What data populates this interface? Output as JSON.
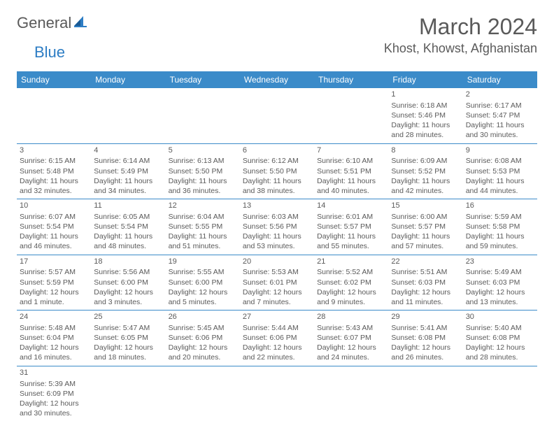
{
  "logo": {
    "text1": "General",
    "text2": "Blue"
  },
  "title": "March 2024",
  "location": "Khost, Khowst, Afghanistan",
  "accent_color": "#3b8bc9",
  "text_color": "#5a5a5a",
  "weekdays": [
    "Sunday",
    "Monday",
    "Tuesday",
    "Wednesday",
    "Thursday",
    "Friday",
    "Saturday"
  ],
  "weeks": [
    [
      null,
      null,
      null,
      null,
      null,
      {
        "day": "1",
        "sunrise": "Sunrise: 6:18 AM",
        "sunset": "Sunset: 5:46 PM",
        "daylight": "Daylight: 11 hours and 28 minutes."
      },
      {
        "day": "2",
        "sunrise": "Sunrise: 6:17 AM",
        "sunset": "Sunset: 5:47 PM",
        "daylight": "Daylight: 11 hours and 30 minutes."
      }
    ],
    [
      {
        "day": "3",
        "sunrise": "Sunrise: 6:15 AM",
        "sunset": "Sunset: 5:48 PM",
        "daylight": "Daylight: 11 hours and 32 minutes."
      },
      {
        "day": "4",
        "sunrise": "Sunrise: 6:14 AM",
        "sunset": "Sunset: 5:49 PM",
        "daylight": "Daylight: 11 hours and 34 minutes."
      },
      {
        "day": "5",
        "sunrise": "Sunrise: 6:13 AM",
        "sunset": "Sunset: 5:50 PM",
        "daylight": "Daylight: 11 hours and 36 minutes."
      },
      {
        "day": "6",
        "sunrise": "Sunrise: 6:12 AM",
        "sunset": "Sunset: 5:50 PM",
        "daylight": "Daylight: 11 hours and 38 minutes."
      },
      {
        "day": "7",
        "sunrise": "Sunrise: 6:10 AM",
        "sunset": "Sunset: 5:51 PM",
        "daylight": "Daylight: 11 hours and 40 minutes."
      },
      {
        "day": "8",
        "sunrise": "Sunrise: 6:09 AM",
        "sunset": "Sunset: 5:52 PM",
        "daylight": "Daylight: 11 hours and 42 minutes."
      },
      {
        "day": "9",
        "sunrise": "Sunrise: 6:08 AM",
        "sunset": "Sunset: 5:53 PM",
        "daylight": "Daylight: 11 hours and 44 minutes."
      }
    ],
    [
      {
        "day": "10",
        "sunrise": "Sunrise: 6:07 AM",
        "sunset": "Sunset: 5:54 PM",
        "daylight": "Daylight: 11 hours and 46 minutes."
      },
      {
        "day": "11",
        "sunrise": "Sunrise: 6:05 AM",
        "sunset": "Sunset: 5:54 PM",
        "daylight": "Daylight: 11 hours and 48 minutes."
      },
      {
        "day": "12",
        "sunrise": "Sunrise: 6:04 AM",
        "sunset": "Sunset: 5:55 PM",
        "daylight": "Daylight: 11 hours and 51 minutes."
      },
      {
        "day": "13",
        "sunrise": "Sunrise: 6:03 AM",
        "sunset": "Sunset: 5:56 PM",
        "daylight": "Daylight: 11 hours and 53 minutes."
      },
      {
        "day": "14",
        "sunrise": "Sunrise: 6:01 AM",
        "sunset": "Sunset: 5:57 PM",
        "daylight": "Daylight: 11 hours and 55 minutes."
      },
      {
        "day": "15",
        "sunrise": "Sunrise: 6:00 AM",
        "sunset": "Sunset: 5:57 PM",
        "daylight": "Daylight: 11 hours and 57 minutes."
      },
      {
        "day": "16",
        "sunrise": "Sunrise: 5:59 AM",
        "sunset": "Sunset: 5:58 PM",
        "daylight": "Daylight: 11 hours and 59 minutes."
      }
    ],
    [
      {
        "day": "17",
        "sunrise": "Sunrise: 5:57 AM",
        "sunset": "Sunset: 5:59 PM",
        "daylight": "Daylight: 12 hours and 1 minute."
      },
      {
        "day": "18",
        "sunrise": "Sunrise: 5:56 AM",
        "sunset": "Sunset: 6:00 PM",
        "daylight": "Daylight: 12 hours and 3 minutes."
      },
      {
        "day": "19",
        "sunrise": "Sunrise: 5:55 AM",
        "sunset": "Sunset: 6:00 PM",
        "daylight": "Daylight: 12 hours and 5 minutes."
      },
      {
        "day": "20",
        "sunrise": "Sunrise: 5:53 AM",
        "sunset": "Sunset: 6:01 PM",
        "daylight": "Daylight: 12 hours and 7 minutes."
      },
      {
        "day": "21",
        "sunrise": "Sunrise: 5:52 AM",
        "sunset": "Sunset: 6:02 PM",
        "daylight": "Daylight: 12 hours and 9 minutes."
      },
      {
        "day": "22",
        "sunrise": "Sunrise: 5:51 AM",
        "sunset": "Sunset: 6:03 PM",
        "daylight": "Daylight: 12 hours and 11 minutes."
      },
      {
        "day": "23",
        "sunrise": "Sunrise: 5:49 AM",
        "sunset": "Sunset: 6:03 PM",
        "daylight": "Daylight: 12 hours and 13 minutes."
      }
    ],
    [
      {
        "day": "24",
        "sunrise": "Sunrise: 5:48 AM",
        "sunset": "Sunset: 6:04 PM",
        "daylight": "Daylight: 12 hours and 16 minutes."
      },
      {
        "day": "25",
        "sunrise": "Sunrise: 5:47 AM",
        "sunset": "Sunset: 6:05 PM",
        "daylight": "Daylight: 12 hours and 18 minutes."
      },
      {
        "day": "26",
        "sunrise": "Sunrise: 5:45 AM",
        "sunset": "Sunset: 6:06 PM",
        "daylight": "Daylight: 12 hours and 20 minutes."
      },
      {
        "day": "27",
        "sunrise": "Sunrise: 5:44 AM",
        "sunset": "Sunset: 6:06 PM",
        "daylight": "Daylight: 12 hours and 22 minutes."
      },
      {
        "day": "28",
        "sunrise": "Sunrise: 5:43 AM",
        "sunset": "Sunset: 6:07 PM",
        "daylight": "Daylight: 12 hours and 24 minutes."
      },
      {
        "day": "29",
        "sunrise": "Sunrise: 5:41 AM",
        "sunset": "Sunset: 6:08 PM",
        "daylight": "Daylight: 12 hours and 26 minutes."
      },
      {
        "day": "30",
        "sunrise": "Sunrise: 5:40 AM",
        "sunset": "Sunset: 6:08 PM",
        "daylight": "Daylight: 12 hours and 28 minutes."
      }
    ],
    [
      {
        "day": "31",
        "sunrise": "Sunrise: 5:39 AM",
        "sunset": "Sunset: 6:09 PM",
        "daylight": "Daylight: 12 hours and 30 minutes."
      },
      null,
      null,
      null,
      null,
      null,
      null
    ]
  ]
}
